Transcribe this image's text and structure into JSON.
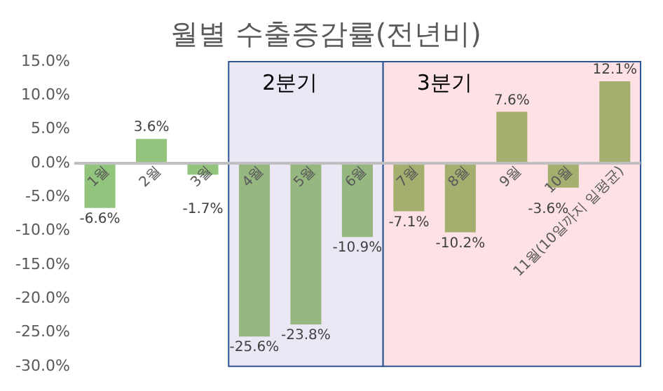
{
  "chart_data": {
    "type": "bar",
    "title": "월별 수출증감률(전년비)",
    "categories": [
      "1월",
      "2월",
      "3월",
      "4월",
      "5월",
      "6월",
      "7월",
      "8월",
      "9월",
      "10월",
      "11월(10일까지 일평균)"
    ],
    "values": [
      -6.6,
      3.6,
      -1.7,
      -25.6,
      -23.8,
      -10.9,
      -7.1,
      -10.2,
      7.6,
      -3.6,
      12.1
    ],
    "colors": [
      "#93c47d",
      "#93c47d",
      "#93c47d",
      "#96b880",
      "#96b880",
      "#96b880",
      "#a3ae6f",
      "#a3ae6f",
      "#a3ae6f",
      "#a3ae6f",
      "#a3ae6f"
    ],
    "value_labels": [
      "-6.6%",
      "3.6%",
      "-1.7%",
      "-25.6%",
      "-23.8%",
      "-10.9%",
      "-7.1%",
      "-10.2%",
      "7.6%",
      "-3.6%",
      "12.1%"
    ],
    "ylim": [
      -30,
      15
    ],
    "yticks": [
      {
        "value": 15,
        "label": "15.0%"
      },
      {
        "value": 10,
        "label": "10.0%"
      },
      {
        "value": 5,
        "label": "5.0%"
      },
      {
        "value": 0,
        "label": "0.0%"
      },
      {
        "value": -5,
        "label": "-5.0%"
      },
      {
        "value": -10,
        "label": "-10.0%"
      },
      {
        "value": -15,
        "label": "-15.0%"
      },
      {
        "value": -20,
        "label": "-20.0%"
      },
      {
        "value": -25,
        "label": "-25.0%"
      },
      {
        "value": -30,
        "label": "-30.0%"
      }
    ],
    "bands": [
      {
        "axis": "x",
        "from": "4월",
        "to": "6월",
        "label": "2분기",
        "color": "#ece7f4"
      },
      {
        "axis": "x",
        "from": "7월",
        "to": "11월(10일까지 일평균)",
        "label": "3분기",
        "color": "#fde1e4"
      }
    ],
    "grid": false,
    "legend": false
  }
}
